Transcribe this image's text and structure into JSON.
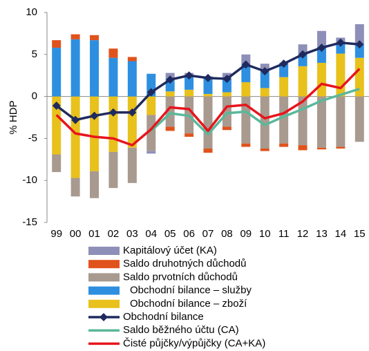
{
  "chart_data": {
    "type": "bar",
    "y_label": "% HDP",
    "categories": [
      "99",
      "00",
      "01",
      "02",
      "03",
      "04",
      "05",
      "06",
      "07",
      "08",
      "09",
      "10",
      "11",
      "12",
      "13",
      "14",
      "15"
    ],
    "ylim": [
      -15,
      10
    ],
    "yticks": [
      10,
      5,
      0,
      -5,
      -10,
      -15
    ],
    "series": [
      {
        "name": "Kapitálový účet (KA)",
        "type": "bar",
        "color": "#8e8fb8",
        "values": [
          0,
          0,
          0,
          0,
          0,
          -0.3,
          0.7,
          0.3,
          0.2,
          0.7,
          1.2,
          1.0,
          0.1,
          1.2,
          1.9,
          0.6,
          2.3
        ]
      },
      {
        "name": "Saldo druhotných důchodů",
        "type": "bar",
        "color": "#e0531c",
        "values": [
          0.9,
          0.6,
          0.6,
          1.1,
          0.5,
          0,
          -0.5,
          -0.4,
          -0.5,
          -0.4,
          -0.4,
          -0.3,
          -0.4,
          -0.6,
          -0.2,
          -0.2,
          0
        ]
      },
      {
        "name": "Saldo prvotních důchodů",
        "type": "bar",
        "color": "#a89a8f",
        "values": [
          -2.1,
          -2.2,
          -3.2,
          -4.3,
          -4.2,
          -4.3,
          -3.6,
          -4.4,
          -6.2,
          -3.6,
          -5.6,
          -6.2,
          -5.6,
          -5.8,
          -6.1,
          -6.0,
          -5.4
        ]
      },
      {
        "name": "Obchodní bilance – služby",
        "type": "bar",
        "color": "#2e8fe0",
        "values": [
          5.8,
          6.8,
          6.7,
          4.6,
          4.2,
          2.7,
          1.5,
          1.7,
          1.9,
          1.6,
          2.1,
          1.9,
          1.6,
          1.4,
          1.9,
          1.3,
          1.7
        ]
      },
      {
        "name": "Obchodní bilance – zboží",
        "type": "bar",
        "color": "#e8c11c",
        "values": [
          -6.9,
          -9.7,
          -8.9,
          -6.6,
          -6.1,
          -2.2,
          0.6,
          0.8,
          0.3,
          0.5,
          1.7,
          1.0,
          2.3,
          3.6,
          4.0,
          5.1,
          4.6
        ]
      },
      {
        "name": "Obchodní bilance",
        "type": "line",
        "marker": "diamond",
        "color": "#1f2a5e",
        "values": [
          -1.1,
          -2.8,
          -2.3,
          -1.9,
          -1.9,
          0.5,
          2.0,
          2.5,
          2.2,
          2.1,
          3.8,
          3.0,
          3.9,
          5.0,
          5.8,
          6.4,
          6.2
        ]
      },
      {
        "name": "Saldo běžného účtu (CA)",
        "type": "line",
        "color": "#5ab89a",
        "values": [
          null,
          null,
          null,
          null,
          null,
          -4.1,
          -2.0,
          -2.3,
          -4.5,
          -2.0,
          -1.8,
          -3.4,
          -2.4,
          -1.5,
          -0.5,
          0.2,
          0.9
        ]
      },
      {
        "name": "Čisté půjčky/výpůjčky (CA+KA)",
        "type": "line",
        "color": "#e8141c",
        "values": [
          -2.2,
          -4.4,
          -4.8,
          -5.0,
          -5.8,
          -3.9,
          -1.3,
          -1.5,
          -4.1,
          -1.2,
          -1.0,
          -2.6,
          -2.0,
          -0.6,
          1.5,
          1.0,
          3.3
        ]
      }
    ]
  }
}
